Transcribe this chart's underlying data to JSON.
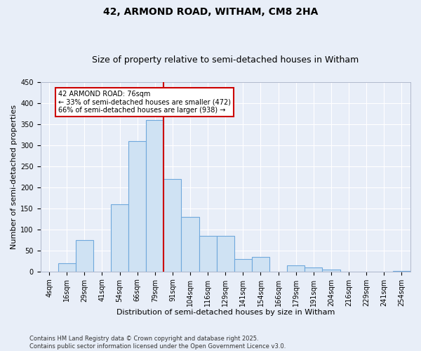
{
  "title": "42, ARMOND ROAD, WITHAM, CM8 2HA",
  "subtitle": "Size of property relative to semi-detached houses in Witham",
  "xlabel": "Distribution of semi-detached houses by size in Witham",
  "ylabel": "Number of semi-detached properties",
  "categories": [
    "4sqm",
    "16sqm",
    "29sqm",
    "41sqm",
    "54sqm",
    "66sqm",
    "79sqm",
    "91sqm",
    "104sqm",
    "116sqm",
    "129sqm",
    "141sqm",
    "154sqm",
    "166sqm",
    "179sqm",
    "191sqm",
    "204sqm",
    "216sqm",
    "229sqm",
    "241sqm",
    "254sqm"
  ],
  "values": [
    0,
    20,
    75,
    0,
    160,
    310,
    360,
    220,
    130,
    85,
    85,
    30,
    35,
    0,
    15,
    10,
    5,
    0,
    0,
    0,
    2
  ],
  "bar_color": "#cfe2f3",
  "bar_edge_color": "#6fa8dc",
  "vline_color": "#cc0000",
  "annotation_text": "42 ARMOND ROAD: 76sqm\n← 33% of semi-detached houses are smaller (472)\n66% of semi-detached houses are larger (938) →",
  "annotation_box_color": "#ffffff",
  "annotation_box_edge": "#cc0000",
  "ylim": [
    0,
    450
  ],
  "yticks": [
    0,
    50,
    100,
    150,
    200,
    250,
    300,
    350,
    400,
    450
  ],
  "bg_color": "#e8eef8",
  "plot_bg_color": "#e8eef8",
  "footer": "Contains HM Land Registry data © Crown copyright and database right 2025.\nContains public sector information licensed under the Open Government Licence v3.0.",
  "title_fontsize": 10,
  "subtitle_fontsize": 9,
  "axis_label_fontsize": 8,
  "tick_fontsize": 7,
  "footer_fontsize": 6
}
